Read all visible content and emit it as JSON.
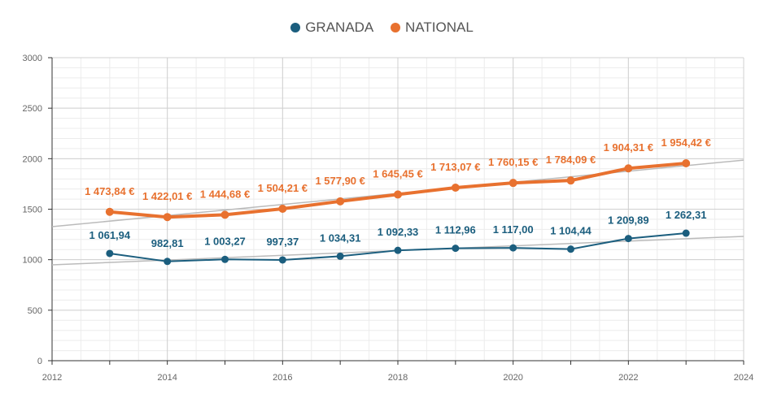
{
  "chart_data": {
    "type": "line",
    "x": [
      2013,
      2014,
      2015,
      2016,
      2017,
      2018,
      2019,
      2020,
      2021,
      2022,
      2023
    ],
    "series": [
      {
        "name": "GRANADA",
        "color": "#1b5e7e",
        "values": [
          1061.94,
          982.81,
          1003.27,
          997.37,
          1034.31,
          1092.33,
          1112.96,
          1117.0,
          1104.44,
          1209.89,
          1262.31
        ],
        "labels": [
          "1 061,94",
          "982,81",
          "1 003,27",
          "997,37",
          "1 034,31",
          "1 092,33",
          "1 112,96",
          "1 117,00",
          "1 104,44",
          "1 209,89",
          "1 262,31"
        ],
        "trendline": [
          [
            2012,
            949
          ],
          [
            2024,
            1231
          ]
        ]
      },
      {
        "name": "NATIONAL",
        "color": "#e8712f",
        "values": [
          1473.84,
          1422.01,
          1444.68,
          1504.21,
          1577.9,
          1645.45,
          1713.07,
          1760.15,
          1784.09,
          1904.31,
          1954.42
        ],
        "labels": [
          "1 473,84 €",
          "1 422,01 €",
          "1 444,68 €",
          "1 504,21 €",
          "1 577,90 €",
          "1 645,45 €",
          "1 713,07 €",
          "1 760,15 €",
          "1 784,09 €",
          "1 904,31 €",
          "1 954,42 €"
        ],
        "trendline": [
          [
            2012,
            1327
          ],
          [
            2024,
            1986
          ]
        ]
      }
    ],
    "xlim": [
      2012,
      2024
    ],
    "ylim": [
      0,
      3000
    ],
    "xticks": [
      "2012",
      "2014",
      "2016",
      "2018",
      "2020",
      "2022",
      "2024"
    ],
    "yticks": [
      "0",
      "500",
      "1000",
      "1500",
      "2000",
      "2500",
      "3000"
    ],
    "grid": true,
    "trendline_color": "#bbbbbb",
    "legend": "top-center"
  }
}
